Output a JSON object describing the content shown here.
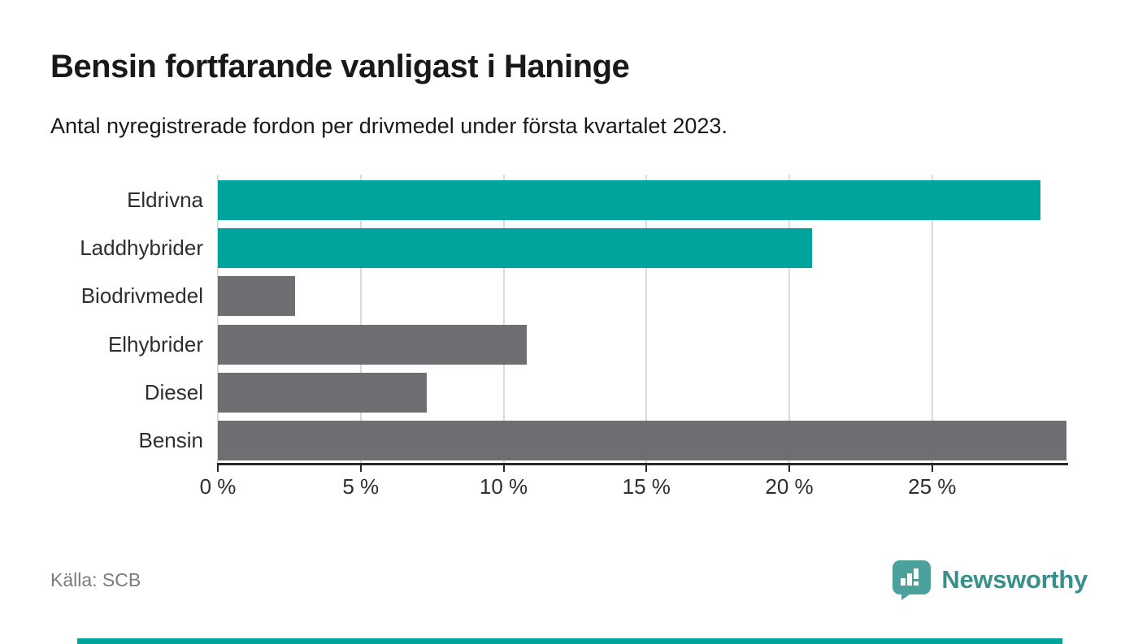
{
  "header": {
    "title": "Bensin fortfarande vanligast i Haninge",
    "subtitle": "Antal nyregistrerade fordon per drivmedel under första kvartalet 2023."
  },
  "chart_data": {
    "type": "bar",
    "orientation": "horizontal",
    "title": "Bensin fortfarande vanligast i Haninge",
    "subtitle": "Antal nyregistrerade fordon per drivmedel under första kvartalet 2023.",
    "categories": [
      "Eldrivna",
      "Laddhybrider",
      "Biodrivmedel",
      "Elhybrider",
      "Diesel",
      "Bensin"
    ],
    "values": [
      28.8,
      20.8,
      2.7,
      10.8,
      7.3,
      29.7
    ],
    "unit": "%",
    "bar_colors": [
      "#00a49c",
      "#00a49c",
      "#6e6e73",
      "#6e6e73",
      "#6e6e73",
      "#6e6e73"
    ],
    "x_ticks": [
      "0 %",
      "5 %",
      "10 %",
      "15 %",
      "20 %",
      "25 %"
    ],
    "x_tick_values": [
      0,
      5,
      10,
      15,
      20,
      25
    ],
    "xlim": [
      0,
      29.7
    ],
    "xlabel": "",
    "ylabel": "",
    "grid": "vertical",
    "legend": "none"
  },
  "footer": {
    "source": "Källa: SCB",
    "brand": "Newsworthy"
  },
  "colors": {
    "accent_teal": "#00a49c",
    "bar_gray": "#6e6e73",
    "gridline": "#dadada",
    "axis": "#282828",
    "text": "#191919",
    "muted_text": "#7b7b7b",
    "brand_teal_text": "#38908c",
    "brand_teal_icon": "#4ba19b"
  }
}
